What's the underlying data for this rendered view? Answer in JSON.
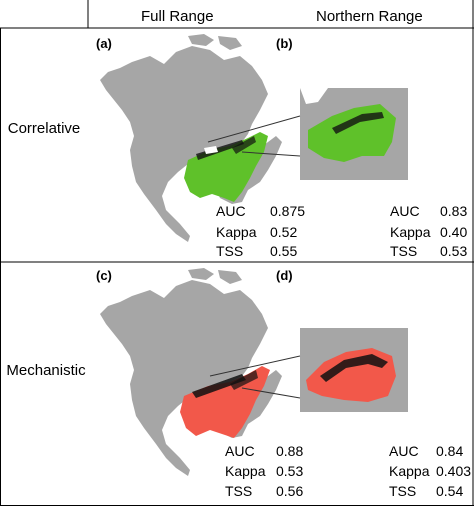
{
  "columns": {
    "full": "Full Range",
    "north": "Northern Range"
  },
  "rows": {
    "correlative": "Correlative",
    "mechanistic": "Mechanistic"
  },
  "panels": [
    {
      "label": "(a)",
      "stats": [
        {
          "name": "AUC",
          "value": "0.875"
        },
        {
          "name": "Kappa",
          "value": "0.52"
        },
        {
          "name": "TSS",
          "value": "0.55"
        }
      ]
    },
    {
      "label": "(b)",
      "stats": [
        {
          "name": "AUC",
          "value": "0.83"
        },
        {
          "name": "Kappa",
          "value": "0.40"
        },
        {
          "name": "TSS",
          "value": "0.53"
        }
      ]
    },
    {
      "label": "(c)",
      "stats": [
        {
          "name": "AUC",
          "value": "0.88"
        },
        {
          "name": "Kappa",
          "value": "0.53"
        },
        {
          "name": "TSS",
          "value": "0.56"
        }
      ]
    },
    {
      "label": "(d)",
      "stats": [
        {
          "name": "AUC",
          "value": "0.84"
        },
        {
          "name": "Kappa",
          "value": "0.403"
        },
        {
          "name": "TSS",
          "value": "0.54"
        }
      ]
    }
  ],
  "colors": {
    "land": "#a6a6a6",
    "correlative": "#5fc12a",
    "mechanistic": "#f2584a",
    "occurrence": "#111111"
  }
}
